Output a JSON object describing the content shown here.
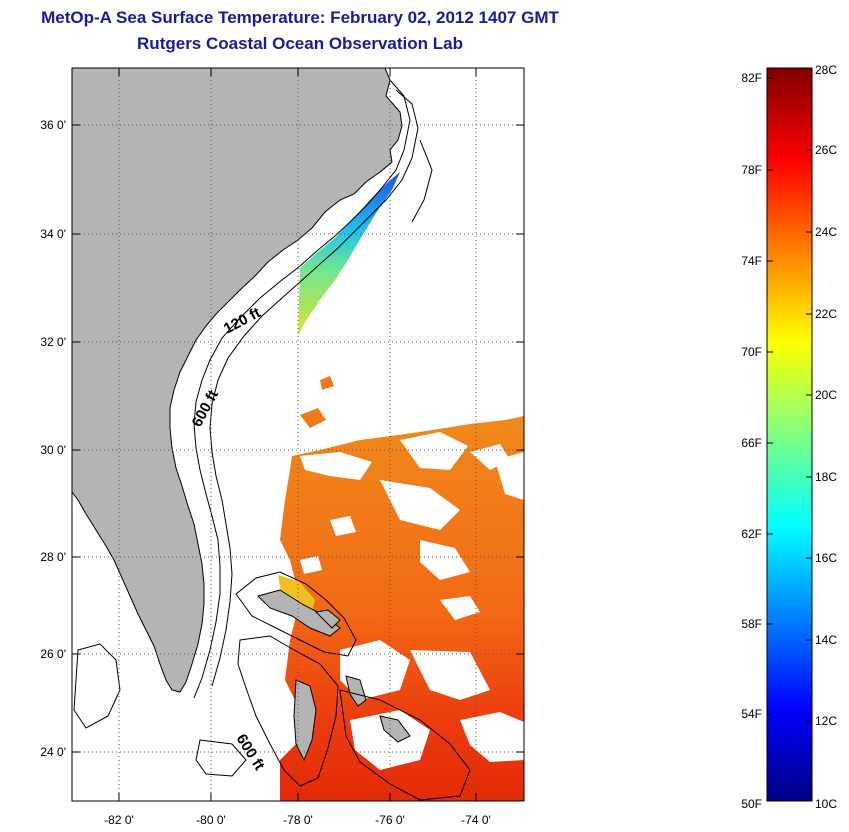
{
  "header": {
    "title": "MetOp-A Sea Surface Temperature:  February 02, 2012 1407 GMT",
    "subtitle": "Rutgers Coastal Ocean Observation Lab"
  },
  "map": {
    "lat_labels": [
      "36 0'",
      "34 0'",
      "32 0'",
      "30 0'",
      "28 0'",
      "26 0'",
      "24 0'"
    ],
    "lon_labels": [
      "-82 0'",
      "-80 0'",
      "-78 0'",
      "-76 0'",
      "-74 0'"
    ],
    "contour_labels": {
      "shelf_120": "120 ft",
      "shelf_600": "600 ft",
      "bahamas_600": "600 ft"
    },
    "land_color": "#b4b4b4",
    "cloud_color": "#ffffff"
  },
  "colorbar": {
    "fahrenheit_labels": [
      "82F",
      "78F",
      "74F",
      "70F",
      "66F",
      "62F",
      "58F",
      "54F",
      "50F"
    ],
    "celsius_labels": [
      "28C",
      "26C",
      "24C",
      "22C",
      "20C",
      "18C",
      "16C",
      "14C",
      "12C",
      "10C"
    ],
    "colors": [
      "#000080",
      "#0000ff",
      "#0080ff",
      "#00ffff",
      "#80ff80",
      "#ffff00",
      "#ff8000",
      "#ff0000",
      "#800000"
    ]
  }
}
